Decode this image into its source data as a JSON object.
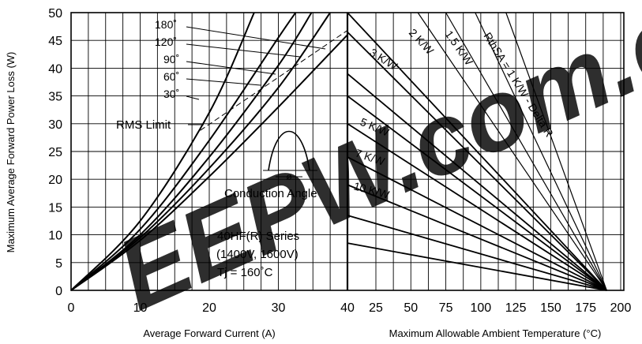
{
  "chart_data": [
    {
      "type": "line",
      "xlabel": "Average Forward Current (A)",
      "ylabel": "Maximum Average Forward Power Loss (W)",
      "xlim": [
        0,
        40
      ],
      "ylim": [
        0,
        50
      ],
      "x_ticks": [
        "0",
        "10",
        "20",
        "30",
        "40"
      ],
      "y_ticks": [
        "0",
        "5",
        "10",
        "15",
        "20",
        "25",
        "30",
        "35",
        "40",
        "45",
        "50"
      ],
      "grid": true,
      "series": [
        {
          "name": "180˚",
          "x": [
            0,
            10,
            20,
            30,
            40
          ],
          "y": [
            0,
            9,
            20.5,
            33,
            46
          ]
        },
        {
          "name": "120˚",
          "x": [
            0,
            10,
            20,
            30,
            37.5
          ],
          "y": [
            0,
            9.5,
            22,
            36.5,
            50
          ]
        },
        {
          "name": "90˚",
          "x": [
            0,
            10,
            20,
            30,
            34.8
          ],
          "y": [
            0,
            10,
            24,
            40.5,
            50
          ]
        },
        {
          "name": "60˚",
          "x": [
            0,
            10,
            20,
            30,
            32.5
          ],
          "y": [
            0,
            11,
            27,
            45.5,
            50
          ]
        },
        {
          "name": "30˚",
          "x": [
            0,
            10,
            20,
            26.5
          ],
          "y": [
            0,
            12.5,
            32,
            50
          ]
        },
        {
          "name": "RMS Limit",
          "x": [
            18.7,
            40
          ],
          "y": [
            28.8,
            46.8
          ]
        }
      ],
      "annotations": {
        "angles": [
          "180˚",
          "120˚",
          "90˚",
          "60˚",
          "30˚"
        ],
        "rms": "RMS Limit",
        "conduction": "Conduction Angle",
        "phi": "ø",
        "series_title": "40HF(R) Series",
        "voltage": "(1400V, 1600V)",
        "tj": "Tj = 160˚C"
      }
    },
    {
      "type": "line",
      "xlabel": "Maximum Allowable Ambient Temperature (°C)",
      "xlim": [
        0,
        200
      ],
      "ylim": [
        0,
        50
      ],
      "x_ticks": [
        "25",
        "50",
        "75",
        "100",
        "125",
        "150",
        "175",
        "200"
      ],
      "series": [
        {
          "name": "RthSA = 1 K/W - Delta R",
          "x": [
            118,
            190
          ],
          "y": [
            50,
            0
          ]
        },
        {
          "name": "1.5 K/W",
          "x": [
            96,
            190
          ],
          "y": [
            50,
            0
          ]
        },
        {
          "name": "2 K/W",
          "x": [
            75,
            190
          ],
          "y": [
            50,
            0
          ]
        },
        {
          "name": "3 K/W",
          "x": [
            55,
            190
          ],
          "y": [
            50,
            0
          ]
        },
        {
          "name": "5 K/W",
          "x": [
            0,
            190
          ],
          "y": [
            30,
            0
          ]
        },
        {
          "name": "7 K/W",
          "x": [
            0,
            190
          ],
          "y": [
            24,
            0
          ]
        },
        {
          "name": "10 K/W",
          "x": [
            0,
            190
          ],
          "y": [
            19,
            0
          ]
        },
        {
          "name": "",
          "x": [
            0,
            190
          ],
          "y": [
            50,
            0
          ]
        },
        {
          "name": "",
          "x": [
            0,
            190
          ],
          "y": [
            46.5,
            0
          ]
        },
        {
          "name": "",
          "x": [
            0,
            190
          ],
          "y": [
            39,
            0
          ]
        },
        {
          "name": "",
          "x": [
            0,
            190
          ],
          "y": [
            35,
            0
          ]
        },
        {
          "name": "",
          "x": [
            0,
            190
          ],
          "y": [
            13.5,
            0
          ]
        },
        {
          "name": "",
          "x": [
            0,
            190
          ],
          "y": [
            8.5,
            0
          ]
        }
      ]
    }
  ],
  "watermark": {
    "text": "EEPW.com.cn",
    "color": "#e0221b"
  }
}
